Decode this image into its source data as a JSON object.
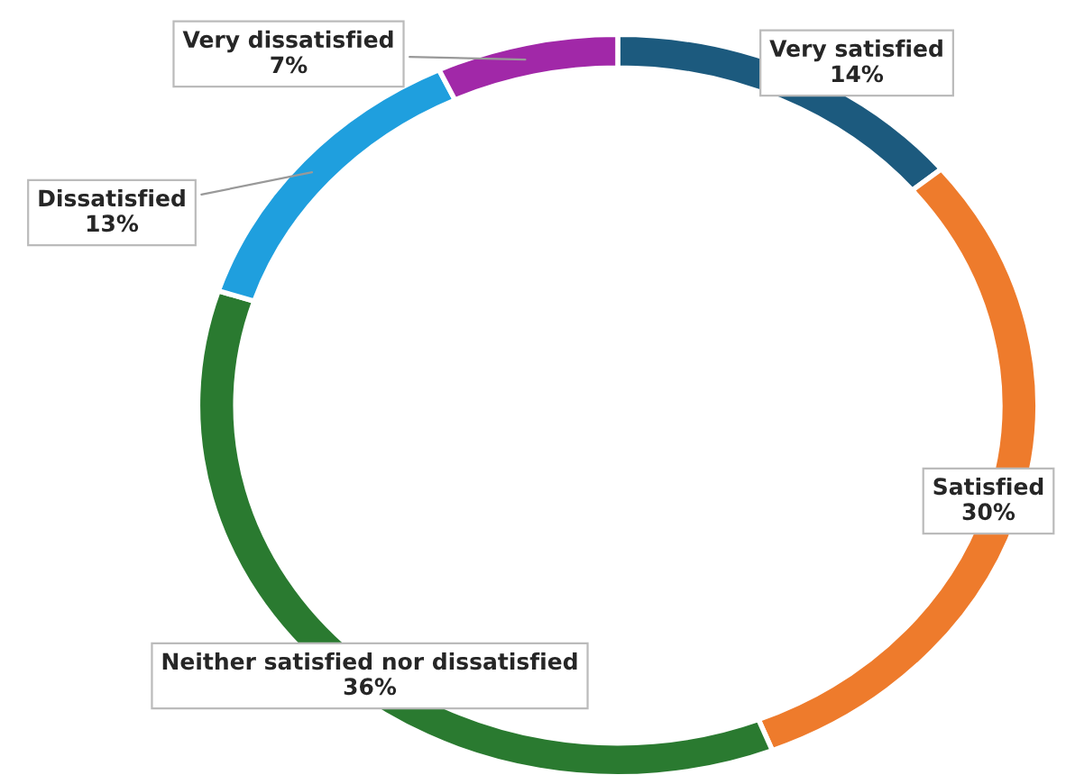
{
  "chart_data": {
    "type": "donut",
    "categories": [
      "Very satisfied",
      "Satisfied",
      "Neither satisfied nor dissatisfied",
      "Dissatisfied",
      "Very dissatisfied"
    ],
    "values": [
      14,
      30,
      36,
      13,
      7
    ],
    "colors": [
      "#1c5a7e",
      "#ee7b2c",
      "#2a7a30",
      "#1f9fde",
      "#a128a8"
    ],
    "value_labels": [
      "14%",
      "30%",
      "36%",
      "13%",
      "7%"
    ],
    "legend": false
  }
}
